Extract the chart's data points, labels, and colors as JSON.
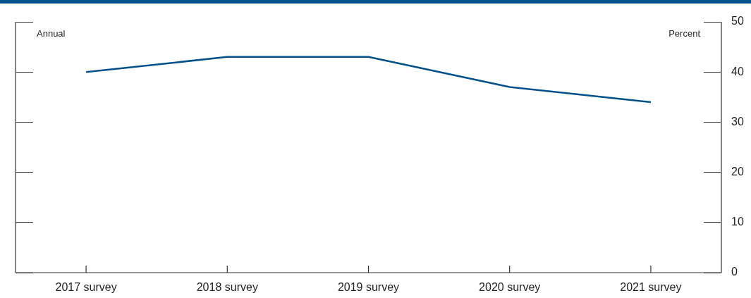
{
  "chart_data": {
    "type": "line",
    "ylabel": "Percent",
    "annotations": [
      "Annual"
    ],
    "categories": [
      "2017 survey",
      "2018 survey",
      "2019 survey",
      "2020 survey",
      "2021 survey"
    ],
    "series": [
      {
        "color": "#00508a",
        "values": [
          40,
          43,
          43,
          37,
          34
        ]
      }
    ],
    "ylim": [
      0,
      50
    ],
    "yticks": [
      0,
      10,
      20,
      30,
      40,
      50
    ],
    "grid": false,
    "legend": false,
    "marker": "none",
    "line_style": "solid"
  }
}
